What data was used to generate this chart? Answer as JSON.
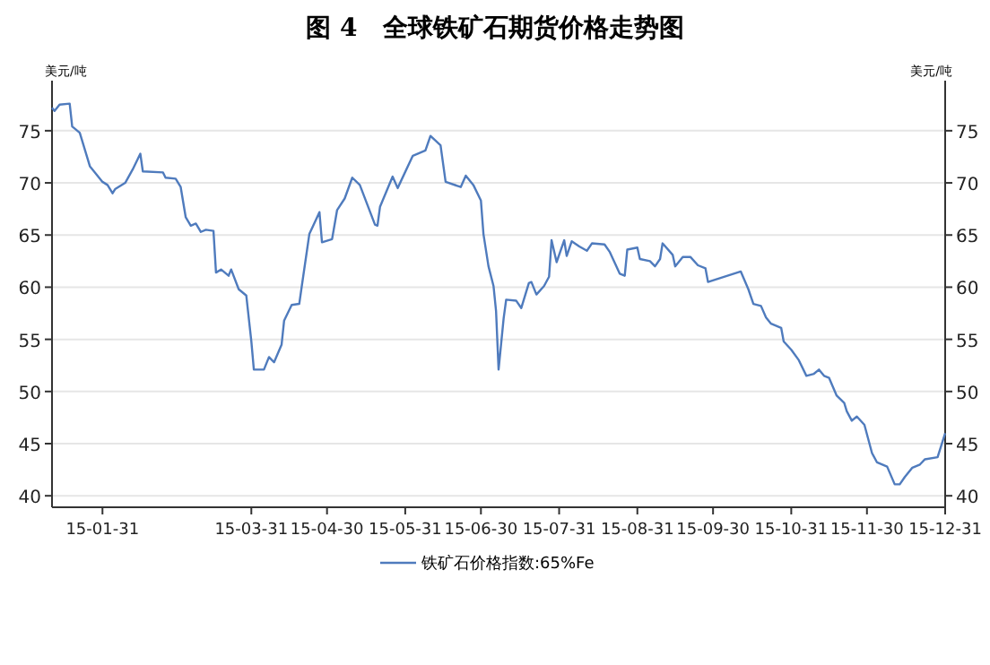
{
  "chart_data": {
    "type": "line",
    "title": "图 4　全球铁矿石期货价格走势图",
    "ylabel": "美元/吨",
    "y2label": "美元/吨",
    "xlim": [
      "--01-11",
      "--12-31"
    ],
    "xticks": [
      {
        "value": "--01-31",
        "label": "15-01-31"
      },
      {
        "value": "--03-31",
        "label": "15-03-31"
      },
      {
        "value": "--04-30",
        "label": "15-04-30"
      },
      {
        "value": "--05-31",
        "label": "15-05-31"
      },
      {
        "value": "--06-30",
        "label": "15-06-30"
      },
      {
        "value": "--07-31",
        "label": "15-07-31"
      },
      {
        "value": "--08-31",
        "label": "15-08-31"
      },
      {
        "value": "--09-30",
        "label": "15-09-30"
      },
      {
        "value": "--10-31",
        "label": "15-10-31"
      },
      {
        "value": "--11-30",
        "label": "15-11-30"
      },
      {
        "value": "--12-31",
        "label": "15-12-31"
      }
    ],
    "ylim": [
      38.9,
      79.8
    ],
    "yticks": [
      40,
      45,
      50,
      55,
      60,
      65,
      70,
      75
    ],
    "y2lim": [
      38.9,
      79.8
    ],
    "y2ticks": [
      40,
      45,
      50,
      55,
      60,
      65,
      70,
      75
    ],
    "grid": "y",
    "legend": "bottom",
    "series": [
      {
        "name": "铁矿石价格指数:65%Fe",
        "color": "#4f7bbd",
        "x": [
          "--01-11",
          "--01-12",
          "--01-14",
          "--01-18",
          "--01-19",
          "--01-22",
          "--01-26",
          "--01-28",
          "--01-31",
          "--02-02",
          "--02-04",
          "--02-05",
          "--02-09",
          "--02-12",
          "--02-15",
          "--02-16",
          "--02-24",
          "--02-25",
          "--03-01",
          "--03-03",
          "--03-05",
          "--03-07",
          "--03-09",
          "--03-11",
          "--03-13",
          "--03-16",
          "--03-17",
          "--03-19",
          "--03-22",
          "--03-23",
          "--03-26",
          "--03-29",
          "--03-31",
          "--04-01",
          "--04-05",
          "--04-07",
          "--04-09",
          "--04-12",
          "--04-13",
          "--04-16",
          "--04-19",
          "--04-20",
          "--04-23",
          "--04-27",
          "--04-28",
          "--05-02",
          "--05-04",
          "--05-07",
          "--05-10",
          "--05-13",
          "--05-19",
          "--05-20",
          "--05-21",
          "--05-26",
          "--05-28",
          "--06-03",
          "--06-08",
          "--06-10",
          "--06-14",
          "--06-16",
          "--06-22",
          "--06-24",
          "--06-27",
          "--06-30",
          "--07-01",
          "--07-03",
          "--07-05",
          "--07-06",
          "--07-07",
          "--07-09",
          "--07-10",
          "--07-14",
          "--07-16",
          "--07-19",
          "--07-20",
          "--07-22",
          "--07-25",
          "--07-27",
          "--07-28",
          "--07-30",
          "--08-02",
          "--08-03",
          "--08-05",
          "--08-08",
          "--08-11",
          "--08-13",
          "--08-18",
          "--08-20",
          "--08-24",
          "--08-26",
          "--08-27",
          "--08-31",
          "--09-01",
          "--09-05",
          "--09-07",
          "--09-09",
          "--09-10",
          "--09-14",
          "--09-15",
          "--09-18",
          "--09-21",
          "--09-24",
          "--09-27",
          "--09-28",
          "--10-11",
          "--10-14",
          "--10-16",
          "--10-19",
          "--10-21",
          "--10-23",
          "--10-27",
          "--10-28",
          "--10-31",
          "--11-03",
          "--11-06",
          "--11-09",
          "--11-11",
          "--11-13",
          "--11-15",
          "--11-18",
          "--11-21",
          "--11-22",
          "--11-24",
          "--11-26",
          "--11-29",
          "--12-02",
          "--12-04",
          "--12-08",
          "--12-11",
          "--12-13",
          "--12-15",
          "--12-18",
          "--12-21",
          "--12-23",
          "--12-28",
          "--12-31"
        ],
        "values": [
          77.2,
          76.9,
          77.5,
          77.6,
          75.4,
          74.8,
          71.6,
          71.0,
          70.1,
          69.8,
          69.0,
          69.4,
          70.0,
          71.3,
          72.8,
          71.1,
          71.0,
          70.5,
          70.4,
          69.6,
          66.7,
          65.9,
          66.1,
          65.3,
          65.5,
          65.4,
          61.4,
          61.7,
          61.1,
          61.7,
          59.8,
          59.2,
          54.8,
          52.1,
          52.1,
          53.3,
          52.8,
          54.5,
          56.8,
          58.3,
          58.4,
          60.1,
          65.1,
          67.2,
          64.3,
          64.6,
          67.4,
          68.5,
          70.5,
          69.8,
          66.0,
          65.9,
          67.7,
          70.6,
          69.5,
          72.6,
          73.1,
          74.5,
          73.6,
          70.1,
          69.6,
          70.7,
          69.8,
          68.3,
          65.1,
          62.0,
          60.1,
          57.7,
          52.1,
          57.0,
          58.8,
          58.7,
          58.0,
          60.4,
          60.5,
          59.3,
          60.1,
          61.0,
          64.5,
          62.4,
          64.5,
          63.0,
          64.4,
          63.9,
          63.5,
          64.2,
          64.1,
          63.4,
          61.3,
          61.1,
          63.6,
          63.8,
          62.7,
          62.5,
          62.0,
          62.7,
          64.2,
          63.1,
          62.0,
          62.9,
          62.9,
          62.1,
          61.8,
          60.5,
          61.5,
          59.8,
          58.4,
          58.2,
          57.1,
          56.5,
          56.1,
          54.8,
          54.0,
          53.0,
          51.5,
          51.7,
          52.1,
          51.5,
          51.3,
          49.6,
          48.9,
          48.1,
          47.2,
          47.6,
          46.8,
          44.1,
          43.2,
          42.8,
          41.1,
          41.1,
          41.8,
          42.7,
          43.0,
          43.5,
          43.7,
          46.0
        ]
      }
    ]
  }
}
